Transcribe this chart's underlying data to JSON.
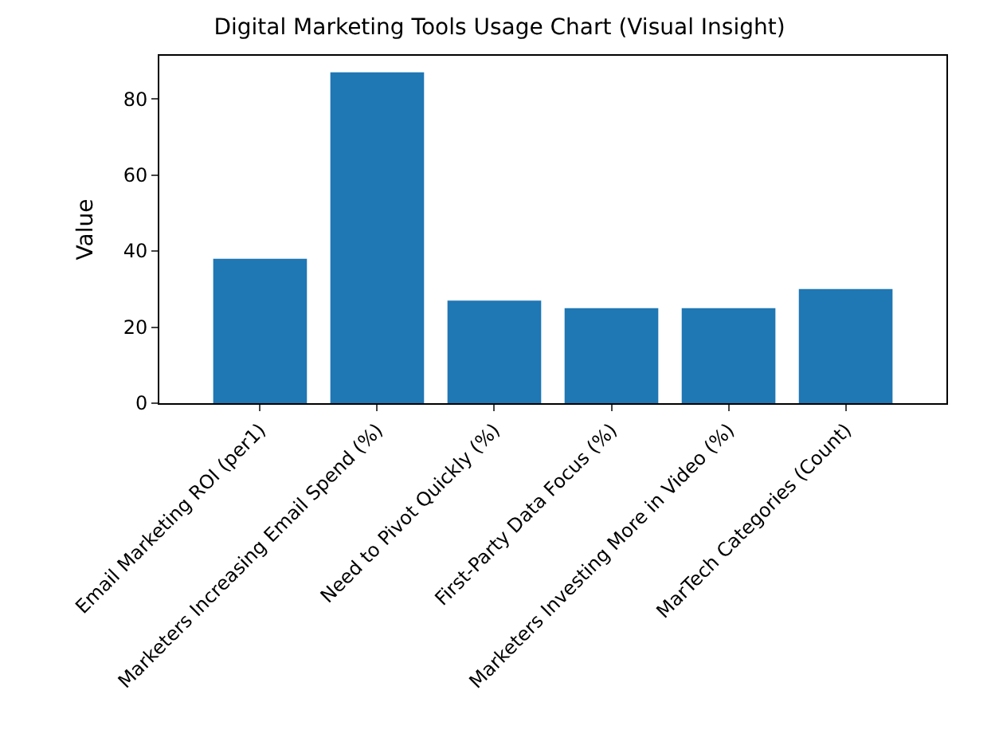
{
  "chart_data": {
    "type": "bar",
    "title": "Digital Marketing Tools Usage Chart (Visual Insight)",
    "ylabel": "Value",
    "categories": [
      "Email Marketing ROI (per1)",
      "Marketers Increasing Email Spend (%)",
      "Need to Pivot Quickly (%)",
      "First-Party Data Focus (%)",
      "Marketers Investing More in Video (%)",
      "MarTech Categories (Count)"
    ],
    "values": [
      38,
      87,
      27,
      25,
      25,
      30
    ],
    "color": "#1f77b4",
    "ylim": [
      0,
      91.35
    ],
    "yticks": [
      0,
      20,
      40,
      60,
      80
    ]
  }
}
